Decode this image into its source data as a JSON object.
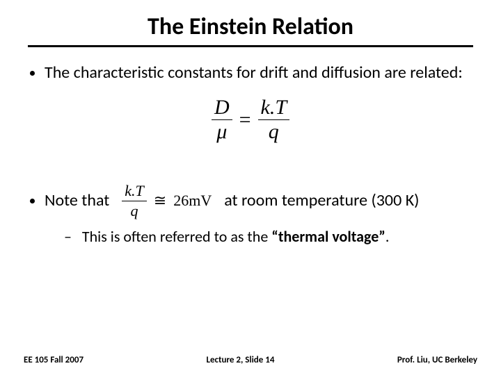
{
  "title": "The Einstein Relation",
  "bullets": {
    "b1": "The characteristic constants for drift and diffusion are related:",
    "note_pre": "Note that",
    "note_post": "at room temperature (300 K)",
    "sub": "This is often referred to as the ",
    "sub_bold": "“thermal voltage”",
    "sub_tail": "."
  },
  "equation_main": {
    "lhs_num": "D",
    "lhs_den": "μ",
    "op": "=",
    "rhs_num": "k.T",
    "rhs_den": "q",
    "fontsize": 30,
    "color": "#000000"
  },
  "equation_inline": {
    "lhs_num": "k.T",
    "lhs_den": "q",
    "op": "≅",
    "rhs": "26mV",
    "fontsize": 22,
    "color": "#000000"
  },
  "footer": {
    "left": "EE 105 Fall 2007",
    "center": "Lecture 2, Slide 14",
    "right": "Prof. Liu, UC Berkeley"
  },
  "styling": {
    "background_color": "#ffffff",
    "text_color": "#000000",
    "title_fontsize": 34,
    "body_fontsize": 24,
    "sub_fontsize": 22,
    "footer_fontsize": 13,
    "rule_color": "#000000",
    "slide_width": 720,
    "slide_height": 540
  }
}
